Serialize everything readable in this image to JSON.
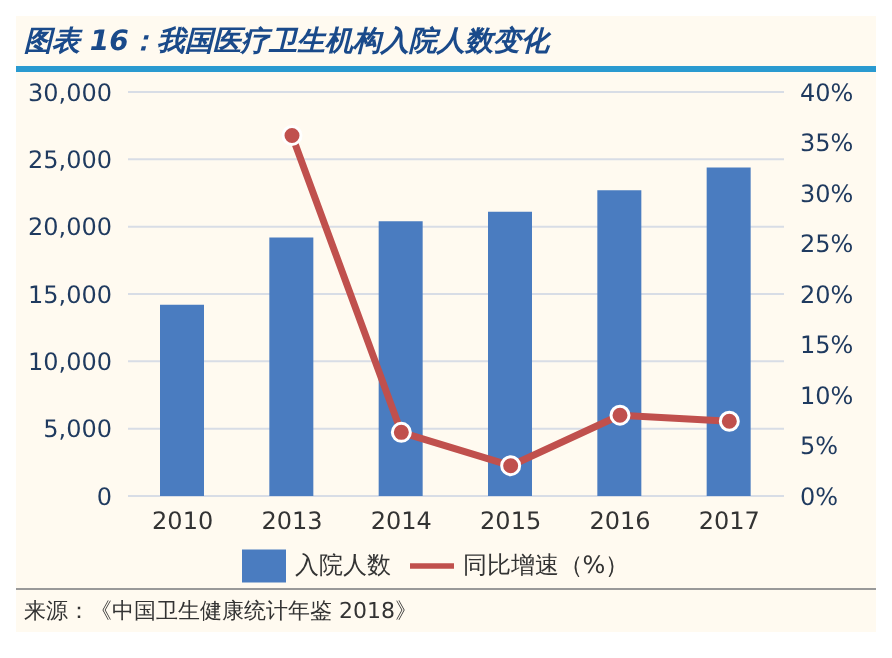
{
  "chart_data": {
    "type": "bar",
    "title": "图表 16：我国医疗卫生机构入院人数变化",
    "annotations": [
      "来源：《中国卫生健康统计年鉴 2018》"
    ],
    "categories": [
      "2010",
      "2013",
      "2014",
      "2015",
      "2016",
      "2017"
    ],
    "series": [
      {
        "name": "入院人数",
        "color": "#4a7cc0",
        "values": [
          14200,
          19200,
          20400,
          21100,
          22700,
          24400
        ]
      },
      {
        "name": "同比增速（%）",
        "type": "line",
        "axis": "y2",
        "color": "#c0504d",
        "marker": "circle",
        "values": [
          null,
          35.7,
          6.3,
          3.0,
          8.0,
          7.4
        ]
      }
    ],
    "ylim": [
      0,
      30000
    ],
    "yticks": [
      {
        "value": 0,
        "label": "0"
      },
      {
        "value": 5000,
        "label": "5,000"
      },
      {
        "value": 10000,
        "label": "10,000"
      },
      {
        "value": 15000,
        "label": "15,000"
      },
      {
        "value": 20000,
        "label": "20,000"
      },
      {
        "value": 25000,
        "label": "25,000"
      },
      {
        "value": 30000,
        "label": "30,000"
      }
    ],
    "y2lim": [
      0,
      40
    ],
    "y2ticks": [
      {
        "value": 0,
        "label": "0%"
      },
      {
        "value": 5,
        "label": "5%"
      },
      {
        "value": 10,
        "label": "10%"
      },
      {
        "value": 15,
        "label": "15%"
      },
      {
        "value": 20,
        "label": "20%"
      },
      {
        "value": 25,
        "label": "25%"
      },
      {
        "value": 30,
        "label": "30%"
      },
      {
        "value": 35,
        "label": "35%"
      },
      {
        "value": 40,
        "label": "40%"
      }
    ],
    "grid": "y",
    "legend": "bottom"
  }
}
